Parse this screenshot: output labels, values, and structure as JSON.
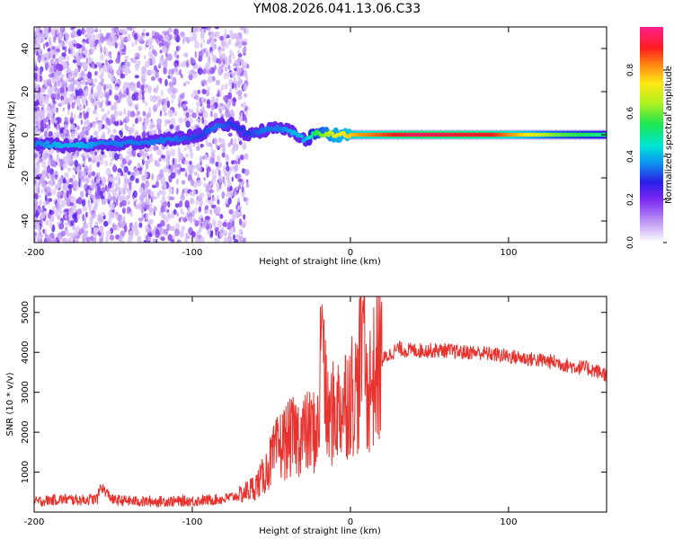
{
  "title": "YM08.2026.041.13.06.C33",
  "colors": {
    "line": "#e8322e",
    "spectro_low": "#b48cf0",
    "spectro_mid": "#00d2e6",
    "spectro_high": "#ff1e3c",
    "axis": "#000000"
  },
  "chart_data": [
    {
      "type": "heatmap",
      "name": "spectrogram",
      "xlabel": "Height of straight line (km)",
      "ylabel": "Frequency (Hz)",
      "xlim": [
        -200,
        162
      ],
      "ylim": [
        -50,
        50
      ],
      "xticks": [
        -200,
        -100,
        0,
        100
      ],
      "yticks": [
        -40,
        -20,
        0,
        20,
        40
      ],
      "xtick_labels": [
        "-200",
        "-100",
        "0",
        "100"
      ],
      "ytick_labels": [
        "-40",
        "-20",
        "0",
        "20",
        "40"
      ],
      "grid": false,
      "colorbar": {
        "label": "Normalized spectral amplitude",
        "range": [
          0,
          1
        ],
        "ticks": [
          0.0,
          0.2,
          0.4,
          0.6,
          0.8
        ],
        "tick_labels": [
          "0.0",
          "0.2",
          "0.4",
          "0.6",
          "0.8"
        ]
      },
      "ridge": [
        {
          "x": -200,
          "f": -4,
          "a": 0.35
        },
        {
          "x": -185,
          "f": -5,
          "a": 0.4
        },
        {
          "x": -170,
          "f": -5,
          "a": 0.4
        },
        {
          "x": -155,
          "f": -4,
          "a": 0.35
        },
        {
          "x": -140,
          "f": -4,
          "a": 0.35
        },
        {
          "x": -125,
          "f": -3,
          "a": 0.35
        },
        {
          "x": -110,
          "f": -2,
          "a": 0.35
        },
        {
          "x": -95,
          "f": 0,
          "a": 0.3
        },
        {
          "x": -85,
          "f": 4,
          "a": 0.35
        },
        {
          "x": -75,
          "f": 5,
          "a": 0.3
        },
        {
          "x": -65,
          "f": 0,
          "a": 0.3
        },
        {
          "x": -55,
          "f": 2,
          "a": 0.35
        },
        {
          "x": -45,
          "f": 3,
          "a": 0.35
        },
        {
          "x": -35,
          "f": 1,
          "a": 0.4
        },
        {
          "x": -28,
          "f": -3,
          "a": 0.4
        },
        {
          "x": -22,
          "f": 1,
          "a": 0.55
        },
        {
          "x": -10,
          "f": 0,
          "a": 0.7
        },
        {
          "x": 5,
          "f": 0,
          "a": 0.8
        },
        {
          "x": 40,
          "f": 0,
          "a": 0.95
        },
        {
          "x": 90,
          "f": 0,
          "a": 0.9
        },
        {
          "x": 130,
          "f": 0,
          "a": 0.6
        },
        {
          "x": 162,
          "f": 0,
          "a": 0.5
        }
      ]
    },
    {
      "type": "line",
      "name": "snr",
      "xlabel": "Height of straight line (km)",
      "ylabel": "SNR (10 * v/v)",
      "xlim": [
        -200,
        162
      ],
      "ylim": [
        0,
        5400
      ],
      "xticks": [
        -200,
        -100,
        0,
        100
      ],
      "yticks": [
        1000,
        2000,
        3000,
        4000,
        5000
      ],
      "xtick_labels": [
        "-200",
        "-100",
        "0",
        "100"
      ],
      "ytick_labels": [
        "1000",
        "2000",
        "3000",
        "4000",
        "5000"
      ],
      "grid": false,
      "series": [
        {
          "name": "SNR",
          "x": [
            -200,
            -190,
            -180,
            -170,
            -160,
            -158,
            -150,
            -140,
            -130,
            -120,
            -110,
            -100,
            -90,
            -80,
            -70,
            -60,
            -55,
            -50,
            -45,
            -40,
            -35,
            -30,
            -25,
            -20,
            -18,
            -15,
            -10,
            -5,
            0,
            5,
            8,
            10,
            15,
            20,
            25,
            30,
            35,
            40,
            50,
            60,
            70,
            80,
            90,
            100,
            110,
            120,
            130,
            140,
            150,
            162
          ],
          "values": [
            250,
            300,
            320,
            300,
            330,
            650,
            300,
            280,
            260,
            270,
            270,
            280,
            300,
            330,
            420,
            650,
            900,
            1300,
            1650,
            1800,
            1900,
            1950,
            2000,
            2050,
            5200,
            2300,
            2500,
            2700,
            3000,
            3050,
            5300,
            3000,
            3400,
            3800,
            3950,
            4100,
            4050,
            4050,
            4050,
            4050,
            4000,
            4000,
            3950,
            3900,
            3850,
            3800,
            3750,
            3650,
            3600,
            3450
          ]
        }
      ]
    }
  ]
}
